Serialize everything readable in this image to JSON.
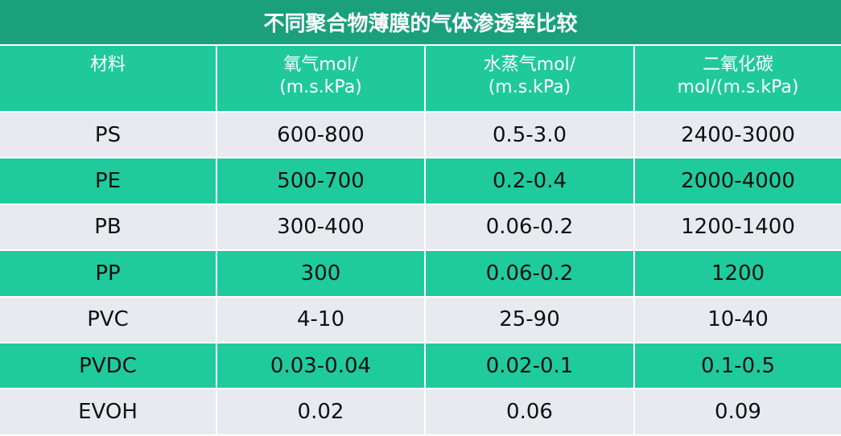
{
  "table": {
    "title": "不同聚合物薄膜的气体渗透率比较",
    "header": [
      [
        "材料"
      ],
      [
        "氧气mol/",
        "(m.s.kPa)"
      ],
      [
        "水蒸气mol/",
        "(m.s.kPa)"
      ],
      [
        "二氧化碳",
        "mol/(m.s.kPa)"
      ]
    ],
    "rows": [
      [
        "PS",
        "600-800",
        "0.5-3.0",
        "2400-3000"
      ],
      [
        "PE",
        "500-700",
        "0.2-0.4",
        "2000-4000"
      ],
      [
        "PB",
        "300-400",
        "0.06-0.2",
        "1200-1400"
      ],
      [
        "PP",
        "300",
        "0.06-0.2",
        "1200"
      ],
      [
        "PVC",
        "4-10",
        "25-90",
        "10-40"
      ],
      [
        "PVDC",
        "0.03-0.04",
        "0.02-0.1",
        "0.1-0.5"
      ],
      [
        "EVOH",
        "0.02",
        "0.06",
        "0.09"
      ]
    ]
  }
}
